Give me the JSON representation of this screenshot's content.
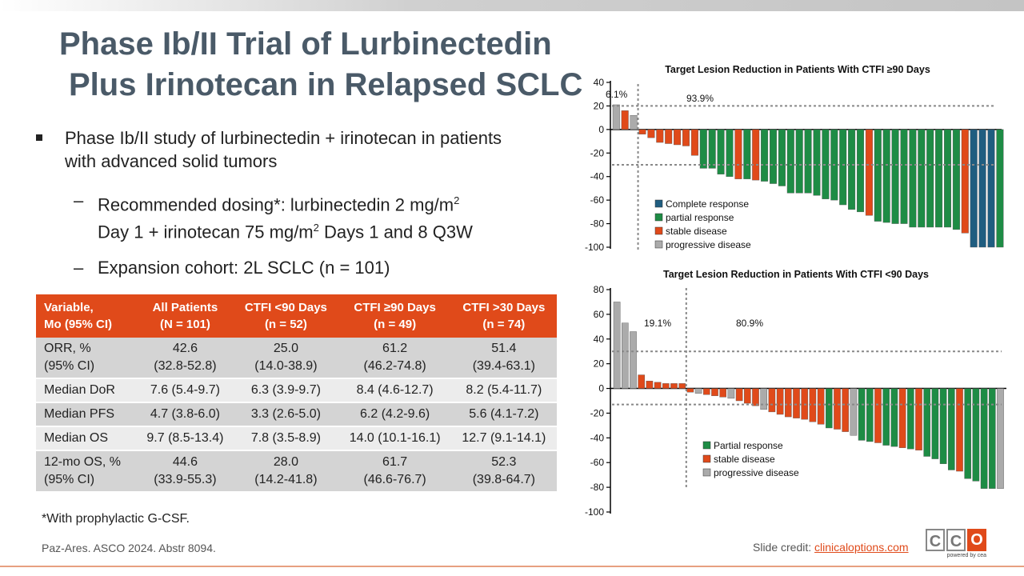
{
  "title": {
    "line1": "Phase Ib/II Trial of Lurbinectedin",
    "line2": "Plus Irinotecan in Relapsed SCLC"
  },
  "bullets": {
    "main": "Phase Ib/II study of lurbinectedin + irinotecan in patients with advanced solid tumors",
    "sub1_line1_a": "Recommended dosing*: lurbinectedin 2 mg/m",
    "sub1_sup1": "2",
    "sub1_line2_a": "Day 1 + irinotecan 75 mg/m",
    "sub1_sup2": "2",
    "sub1_line2_b": " Days 1 and 8 Q3W",
    "sub2": "Expansion cohort: 2L SCLC (n = 101)"
  },
  "table": {
    "headers": [
      [
        "Variable,",
        "Mo (95% CI)"
      ],
      [
        "All Patients",
        "(N = 101)"
      ],
      [
        "CTFI <90 Days",
        "(n = 52)"
      ],
      [
        "CTFI ≥90 Days",
        "(n = 49)"
      ],
      [
        "CTFI >30 Days",
        "(n = 74)"
      ]
    ],
    "rows": [
      [
        [
          "ORR, %",
          "(95% CI)"
        ],
        [
          "42.6",
          "(32.8-52.8)"
        ],
        [
          "25.0",
          "(14.0-38.9)"
        ],
        [
          "61.2",
          "(46.2-74.8)"
        ],
        [
          "51.4",
          "(39.4-63.1)"
        ]
      ],
      [
        [
          "Median DoR"
        ],
        [
          "7.6 (5.4-9.7)"
        ],
        [
          "6.3 (3.9-9.7)"
        ],
        [
          "8.4 (4.6-12.7)"
        ],
        [
          "8.2 (5.4-11.7)"
        ]
      ],
      [
        [
          "Median PFS"
        ],
        [
          "4.7 (3.8-6.0)"
        ],
        [
          "3.3 (2.6-5.0)"
        ],
        [
          "6.2 (4.2-9.6)"
        ],
        [
          "5.6 (4.1-7.2)"
        ]
      ],
      [
        [
          "Median OS"
        ],
        [
          "9.7 (8.5-13.4)"
        ],
        [
          "7.8 (3.5-8.9)"
        ],
        [
          "14.0 (10.1-16.1)"
        ],
        [
          "12.7 (9.1-14.1)"
        ]
      ],
      [
        [
          "12-mo OS, %",
          "(95% CI)"
        ],
        [
          "44.6",
          "(33.9-55.3)"
        ],
        [
          "28.0",
          "(14.2-41.8)"
        ],
        [
          "61.7",
          "(46.6-76.7)"
        ],
        [
          "52.3",
          "(39.8-64.7)"
        ]
      ]
    ]
  },
  "footnote": "*With prophylactic G-CSF.",
  "citation": "Paz-Ares. ASCO 2024. Abstr 8094.",
  "credit": {
    "label": "Slide credit: ",
    "link": "clinicaloptions.com"
  },
  "logo": {
    "letters": [
      "C",
      "C",
      "O"
    ],
    "tagline": "powered by cea"
  },
  "colors": {
    "complete": "#1f5d80",
    "partial": "#1e8c45",
    "stable": "#e04a1a",
    "progressive": "#ababab",
    "title": "#4a5a68",
    "accent": "#e04a1a"
  },
  "chart_data": [
    {
      "type": "bar",
      "subtype": "waterfall",
      "title": "Target Lesion Reduction in Patients With CTFI ≥90 Days",
      "ylim": [
        -100,
        40
      ],
      "yticks": [
        -100,
        -80,
        -60,
        -40,
        -20,
        0,
        20,
        40
      ],
      "reference_lines": [
        20,
        -30
      ],
      "split_after_index": 2,
      "annotations": [
        "6.1%",
        "93.9%"
      ],
      "legend": [
        {
          "key": "CR",
          "label": "Complete response"
        },
        {
          "key": "PR",
          "label": "partial response"
        },
        {
          "key": "SD",
          "label": "stable disease"
        },
        {
          "key": "PD",
          "label": "progressive disease"
        }
      ],
      "values": [
        21,
        16,
        12,
        -4,
        -7,
        -11,
        -12,
        -13,
        -14,
        -22,
        -33,
        -33,
        -38,
        -40,
        -42,
        -42,
        -43,
        -44,
        -46,
        -48,
        -54,
        -54,
        -54,
        -56,
        -59,
        -60,
        -64,
        -68,
        -70,
        -73,
        -78,
        -79,
        -80,
        -80,
        -83,
        -83,
        -83,
        -83,
        -83,
        -85,
        -88,
        -100,
        -100,
        -100,
        -100
      ],
      "categories": [
        "PD",
        "SD",
        "PD",
        "SD",
        "SD",
        "SD",
        "SD",
        "SD",
        "SD",
        "SD",
        "PR",
        "PR",
        "PR",
        "PR",
        "SD",
        "PR",
        "SD",
        "PR",
        "PR",
        "PR",
        "PR",
        "PR",
        "PR",
        "PR",
        "PR",
        "PR",
        "PR",
        "PR",
        "PR",
        "SD",
        "PR",
        "PR",
        "PR",
        "PR",
        "PR",
        "PR",
        "PR",
        "PR",
        "PR",
        "PR",
        "SD",
        "CR",
        "CR",
        "CR",
        "PR"
      ]
    },
    {
      "type": "bar",
      "subtype": "waterfall",
      "title": "Target Lesion Reduction in Patients With CTFI <90 Days",
      "ylim": [
        -100,
        80
      ],
      "yticks": [
        -100,
        -80,
        -60,
        -40,
        -20,
        0,
        20,
        40,
        60,
        80
      ],
      "reference_lines": [
        30,
        -13
      ],
      "split_after_index": 8,
      "annotations": [
        "19.1%",
        "80.9%"
      ],
      "legend": [
        {
          "key": "PR",
          "label": "Partial response"
        },
        {
          "key": "SD",
          "label": "stable disease"
        },
        {
          "key": "PD",
          "label": "progressive disease"
        }
      ],
      "values": [
        70,
        53,
        46,
        11,
        6,
        5,
        4,
        4,
        4,
        -3,
        -4,
        -5,
        -6,
        -7,
        -8,
        -10,
        -12,
        -14,
        -17,
        -19,
        -21,
        -23,
        -24,
        -25,
        -27,
        -29,
        -32,
        -33,
        -35,
        -38,
        -42,
        -43,
        -44,
        -46,
        -47,
        -48,
        -49,
        -50,
        -55,
        -57,
        -61,
        -66,
        -67,
        -73,
        -75,
        -81,
        -81,
        -81
      ],
      "categories": [
        "PD",
        "PD",
        "PD",
        "SD",
        "SD",
        "SD",
        "SD",
        "SD",
        "SD",
        "SD",
        "PD",
        "SD",
        "SD",
        "SD",
        "PD",
        "SD",
        "SD",
        "SD",
        "PD",
        "SD",
        "SD",
        "SD",
        "SD",
        "SD",
        "SD",
        "SD",
        "PR",
        "SD",
        "SD",
        "PD",
        "PR",
        "PR",
        "SD",
        "PR",
        "PR",
        "SD",
        "PR",
        "SD",
        "PR",
        "PR",
        "PR",
        "PR",
        "SD",
        "PR",
        "PR",
        "PR",
        "PR",
        "PD"
      ]
    }
  ]
}
